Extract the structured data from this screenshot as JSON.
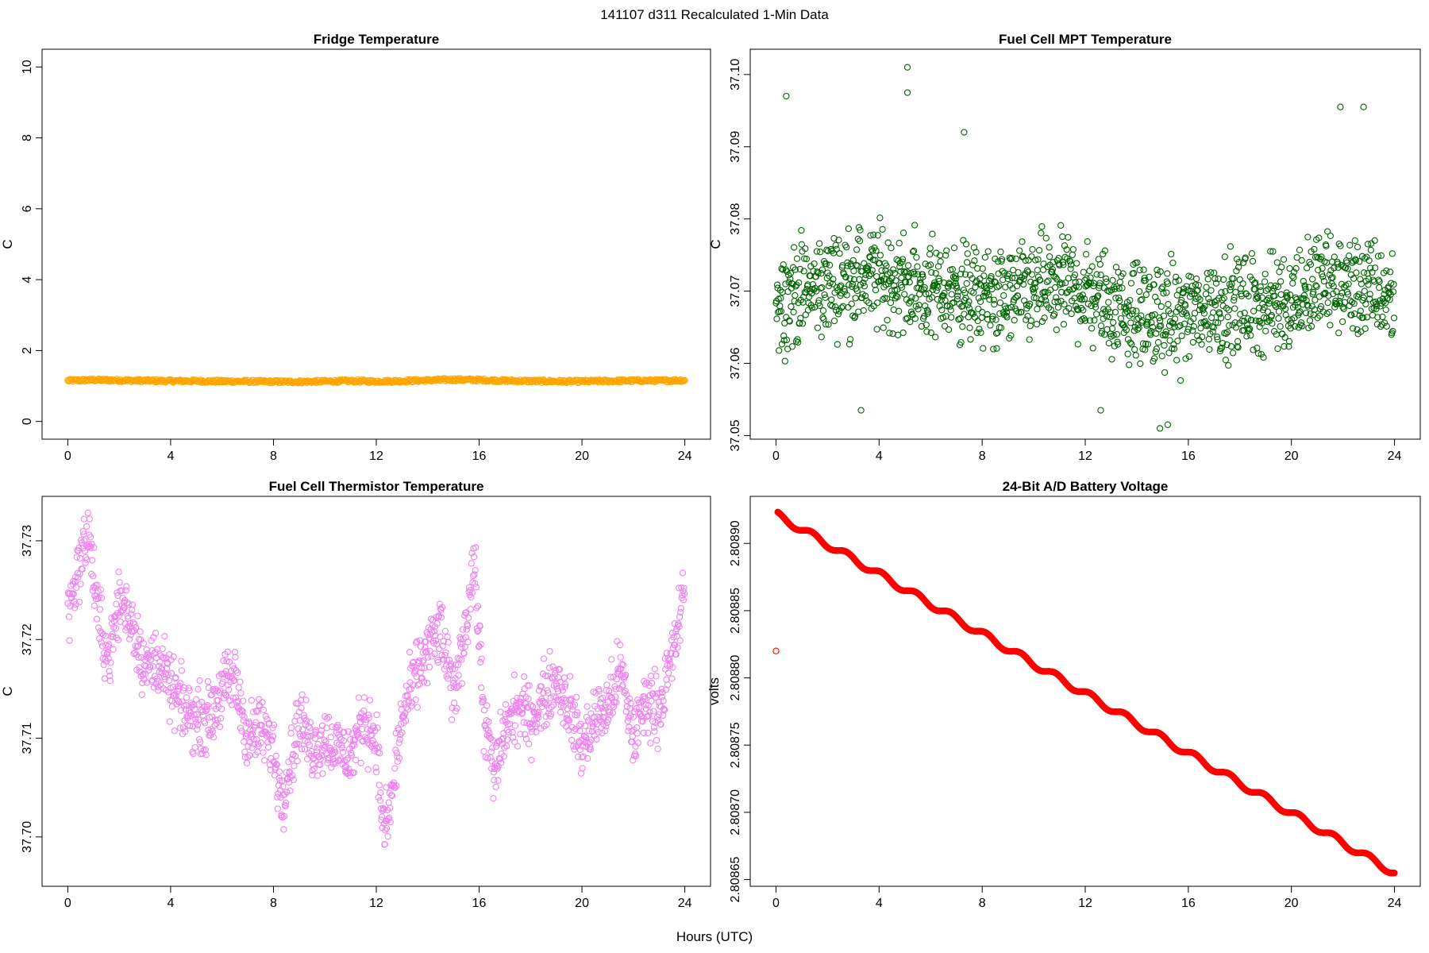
{
  "figure": {
    "title": "141107   d311   Recalculated 1-Min Data",
    "xlabel": "Hours (UTC)"
  },
  "chart_data": [
    {
      "type": "scatter",
      "title": "Fridge Temperature",
      "ylabel": "C",
      "xlim": [
        -1,
        25
      ],
      "ylim": [
        -0.5,
        10.5
      ],
      "xticks": [
        "0",
        "4",
        "8",
        "12",
        "16",
        "20",
        "24"
      ],
      "yticks": [
        "0",
        "2",
        "4",
        "6",
        "8",
        "10"
      ],
      "color": "#FFA500",
      "marker": "open-circle",
      "series": [
        {
          "x": [
            0,
            1,
            2,
            3,
            4,
            5,
            6,
            7,
            8,
            9,
            10,
            11,
            12,
            13,
            14,
            15,
            16,
            17,
            18,
            19,
            20,
            21,
            22,
            23,
            24
          ],
          "y": [
            1.15,
            1.17,
            1.16,
            1.15,
            1.14,
            1.14,
            1.13,
            1.13,
            1.12,
            1.12,
            1.13,
            1.14,
            1.13,
            1.14,
            1.16,
            1.18,
            1.17,
            1.15,
            1.14,
            1.13,
            1.13,
            1.14,
            1.15,
            1.15,
            1.16
          ],
          "band": 0.08
        }
      ]
    },
    {
      "type": "scatter",
      "title": "Fuel Cell MPT Temperature",
      "ylabel": "C",
      "xlim": [
        -1,
        25
      ],
      "ylim": [
        37.0495,
        37.1035
      ],
      "xticks": [
        "0",
        "4",
        "8",
        "12",
        "16",
        "20",
        "24"
      ],
      "yticks": [
        "37.05",
        "37.06",
        "37.07",
        "37.08",
        "37.09",
        "37.10"
      ],
      "color": "#006400",
      "marker": "open-circle",
      "series": [
        {
          "x_range": [
            0,
            24
          ],
          "center": [
            37.069,
            37.07,
            37.071,
            37.072,
            37.072,
            37.071,
            37.07,
            37.07,
            37.069,
            37.069,
            37.07,
            37.071,
            37.07,
            37.068,
            37.067,
            37.066,
            37.067,
            37.068,
            37.068,
            37.068,
            37.069,
            37.071,
            37.071,
            37.07,
            37.069
          ],
          "spread": 0.0065,
          "outliers": [
            [
              5.1,
              37.101
            ],
            [
              5.1,
              37.0975
            ],
            [
              0.4,
              37.097
            ],
            [
              21.9,
              37.0955
            ],
            [
              22.8,
              37.0955
            ],
            [
              7.3,
              37.092
            ],
            [
              14.9,
              37.051
            ],
            [
              15.2,
              37.0515
            ],
            [
              3.3,
              37.0535
            ],
            [
              12.6,
              37.0535
            ]
          ]
        }
      ]
    },
    {
      "type": "scatter",
      "title": "Fuel Cell Thermistor Temperature",
      "ylabel": "C",
      "xlim": [
        -1,
        25
      ],
      "ylim": [
        37.695,
        37.7345
      ],
      "xticks": [
        "0",
        "4",
        "8",
        "12",
        "16",
        "20",
        "24"
      ],
      "yticks": [
        "37.70",
        "37.71",
        "37.72",
        "37.73"
      ],
      "color": "#EE82EE",
      "marker": "open-circle",
      "series": [
        {
          "x": [
            0,
            0.5,
            0.8,
            1.2,
            1.6,
            2,
            2.5,
            3,
            3.5,
            4,
            4.5,
            5,
            5.5,
            6,
            6.5,
            7,
            7.5,
            8,
            8.3,
            8.7,
            9,
            9.5,
            10,
            10.5,
            11,
            11.5,
            12,
            12.3,
            12.6,
            13,
            13.5,
            14,
            14.5,
            15,
            15.5,
            15.8,
            16.2,
            16.6,
            17,
            17.5,
            18,
            18.5,
            19,
            19.5,
            20,
            20.5,
            21,
            21.5,
            22,
            22.5,
            23,
            23.5,
            24
          ],
          "y": [
            37.723,
            37.728,
            37.731,
            37.722,
            37.718,
            37.724,
            37.722,
            37.717,
            37.718,
            37.715,
            37.713,
            37.712,
            37.712,
            37.715,
            37.716,
            37.71,
            37.711,
            37.709,
            37.704,
            37.708,
            37.712,
            37.709,
            37.71,
            37.709,
            37.708,
            37.712,
            37.71,
            37.7,
            37.704,
            37.712,
            37.716,
            37.719,
            37.721,
            37.714,
            37.722,
            37.728,
            37.712,
            37.706,
            37.711,
            37.713,
            37.712,
            37.714,
            37.716,
            37.713,
            37.709,
            37.712,
            37.713,
            37.717,
            37.71,
            37.714,
            37.713,
            37.718,
            37.725
          ],
          "spread": 0.0035
        }
      ]
    },
    {
      "type": "scatter",
      "title": "24-Bit A/D Battery Voltage",
      "ylabel": "volts",
      "xlim": [
        -1,
        25
      ],
      "ylim": [
        2.808645,
        2.808935
      ],
      "xticks": [
        "0",
        "4",
        "8",
        "12",
        "16",
        "20",
        "24"
      ],
      "yticks": [
        "2.80865",
        "2.80870",
        "2.80875",
        "2.80880",
        "2.80885",
        "2.80890"
      ],
      "color": "#FF0000",
      "marker": "open-circle",
      "series": [
        {
          "start": [
            0.05,
            2.808921
          ],
          "end": [
            24,
            2.808655
          ],
          "oscillation_period_hours": 1.35,
          "oscillation_amplitude": 2.5e-06,
          "outlier": [
            0,
            2.80882
          ]
        }
      ]
    }
  ]
}
